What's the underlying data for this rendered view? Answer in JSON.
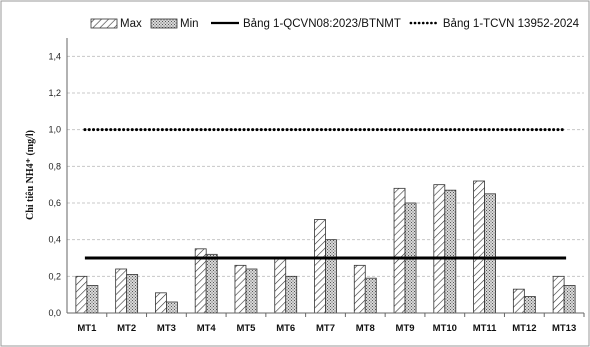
{
  "chart_data": {
    "type": "bar",
    "title": "",
    "xlabel": "",
    "ylabel": "Chỉ tiêu NH4⁺ (mg/l)",
    "ylim": [
      0,
      1.5
    ],
    "yticks": [
      "0,0",
      "0,2",
      "0,4",
      "0,6",
      "0,8",
      "1,0",
      "1,2",
      "1,4"
    ],
    "ytick_values": [
      0,
      0.2,
      0.4,
      0.6,
      0.8,
      1.0,
      1.2,
      1.4
    ],
    "grid": true,
    "legend_position": "top",
    "categories": [
      "MT1",
      "MT2",
      "MT3",
      "MT4",
      "MT5",
      "MT6",
      "MT7",
      "MT8",
      "MT9",
      "MT10",
      "MT11",
      "MT12",
      "MT13"
    ],
    "series": [
      {
        "name": "Max",
        "pattern": "diagonal-hatch",
        "values": [
          0.2,
          0.24,
          0.11,
          0.35,
          0.26,
          0.3,
          0.51,
          0.26,
          0.68,
          0.7,
          0.72,
          0.13,
          0.2
        ]
      },
      {
        "name": "Min",
        "pattern": "crosshatch",
        "values": [
          0.15,
          0.21,
          0.06,
          0.32,
          0.24,
          0.2,
          0.4,
          0.19,
          0.6,
          0.67,
          0.65,
          0.09,
          0.15
        ]
      }
    ],
    "reference_lines": [
      {
        "name": "Bảng 1-QCVN08:2023/BTNMT",
        "value": 0.3,
        "style": "solid"
      },
      {
        "name": "Bảng 1-TCVN 13952-2024",
        "value": 1.0,
        "style": "dotted"
      }
    ]
  }
}
